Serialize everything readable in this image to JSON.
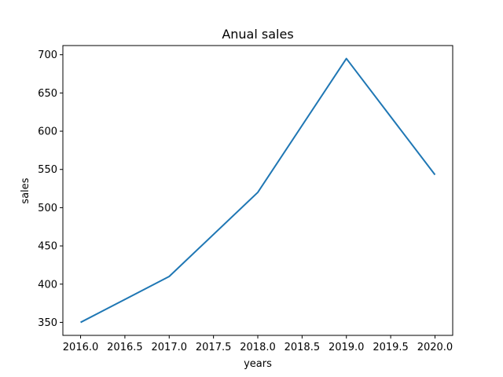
{
  "chart_data": {
    "type": "line",
    "title": "Anual sales",
    "xlabel": "years",
    "ylabel": "sales",
    "x": [
      2016,
      2017,
      2018,
      2019,
      2020
    ],
    "series": [
      {
        "values": [
          350,
          410,
          520,
          695,
          543
        ]
      }
    ],
    "xlim": [
      2015.8,
      2020.2
    ],
    "ylim": [
      333,
      712
    ],
    "xticks": [
      "2016.0",
      "2016.5",
      "2017.0",
      "2017.5",
      "2018.0",
      "2018.5",
      "2019.0",
      "2019.5",
      "2020.0"
    ],
    "yticks": [
      "350",
      "400",
      "450",
      "500",
      "550",
      "600",
      "650",
      "700"
    ],
    "grid": false,
    "line_color": "#1f77b4"
  }
}
